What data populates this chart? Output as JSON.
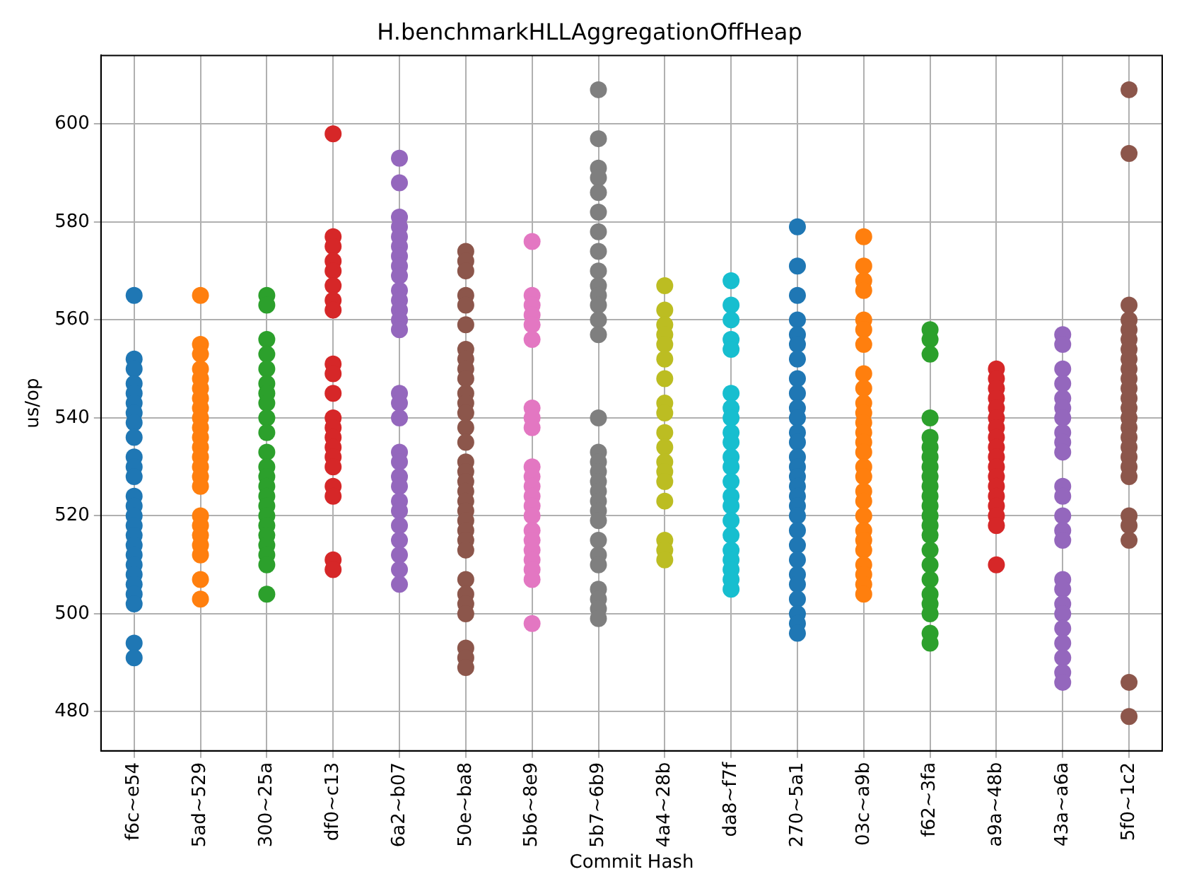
{
  "chart_data": {
    "type": "scatter",
    "title": "H.benchmarkHLLAggregationOffHeap",
    "xlabel": "Commit Hash",
    "ylabel": "us/op",
    "categories": [
      "f6c~e54",
      "5ad~529",
      "300~25a",
      "df0~c13",
      "6a2~b07",
      "50e~ba8",
      "5b6~8e9",
      "5b7~6b9",
      "4a4~28b",
      "da8~f7f",
      "270~5a1",
      "03c~a9b",
      "f62~3fa",
      "a9a~48b",
      "43a~a6a",
      "5f0~1c2"
    ],
    "ylim": [
      472,
      614
    ],
    "yticks": [
      480,
      500,
      520,
      540,
      560,
      580,
      600
    ],
    "grid": true,
    "legend": false,
    "marker": "circle",
    "series": [
      {
        "color": "#1f77b4",
        "x": [
          "f6c~e54",
          "f6c~e54",
          "f6c~e54",
          "f6c~e54",
          "f6c~e54",
          "f6c~e54",
          "f6c~e54",
          "f6c~e54",
          "f6c~e54",
          "f6c~e54",
          "f6c~e54",
          "f6c~e54",
          "f6c~e54",
          "f6c~e54",
          "f6c~e54",
          "f6c~e54",
          "f6c~e54",
          "f6c~e54",
          "f6c~e54",
          "f6c~e54",
          "f6c~e54",
          "f6c~e54",
          "f6c~e54",
          "f6c~e54",
          "f6c~e54",
          "f6c~e54"
        ],
        "values": [
          565,
          552,
          550,
          547,
          545,
          543,
          541,
          539,
          536,
          532,
          530,
          528,
          524,
          522,
          520,
          518,
          516,
          514,
          512,
          510,
          508,
          506,
          504,
          502,
          494,
          491
        ]
      },
      {
        "color": "#ff7f0e",
        "x": [
          "5ad~529",
          "5ad~529",
          "5ad~529",
          "5ad~529",
          "5ad~529",
          "5ad~529",
          "5ad~529",
          "5ad~529",
          "5ad~529",
          "5ad~529",
          "5ad~529",
          "5ad~529",
          "5ad~529",
          "5ad~529",
          "5ad~529",
          "5ad~529",
          "5ad~529",
          "5ad~529",
          "5ad~529",
          "5ad~529",
          "5ad~529",
          "5ad~529",
          "5ad~529"
        ],
        "values": [
          565,
          555,
          553,
          550,
          548,
          546,
          544,
          542,
          540,
          538,
          536,
          534,
          532,
          530,
          528,
          526,
          520,
          518,
          516,
          514,
          512,
          507,
          503
        ]
      },
      {
        "color": "#2ca02c",
        "x": [
          "300~25a",
          "300~25a",
          "300~25a",
          "300~25a",
          "300~25a",
          "300~25a",
          "300~25a",
          "300~25a",
          "300~25a",
          "300~25a",
          "300~25a",
          "300~25a",
          "300~25a",
          "300~25a",
          "300~25a",
          "300~25a",
          "300~25a",
          "300~25a",
          "300~25a",
          "300~25a",
          "300~25a",
          "300~25a",
          "300~25a"
        ],
        "values": [
          565,
          563,
          556,
          553,
          550,
          547,
          545,
          543,
          540,
          537,
          533,
          530,
          528,
          526,
          524,
          522,
          520,
          518,
          516,
          514,
          512,
          510,
          504
        ]
      },
      {
        "color": "#d62728",
        "x": [
          "df0~c13",
          "df0~c13",
          "df0~c13",
          "df0~c13",
          "df0~c13",
          "df0~c13",
          "df0~c13",
          "df0~c13",
          "df0~c13",
          "df0~c13",
          "df0~c13",
          "df0~c13",
          "df0~c13",
          "df0~c13",
          "df0~c13",
          "df0~c13",
          "df0~c13",
          "df0~c13",
          "df0~c13",
          "df0~c13",
          "df0~c13"
        ],
        "values": [
          598,
          577,
          575,
          572,
          570,
          567,
          564,
          562,
          551,
          549,
          545,
          540,
          538,
          536,
          534,
          532,
          530,
          526,
          524,
          511,
          509
        ]
      },
      {
        "color": "#9467bd",
        "x": [
          "6a2~b07",
          "6a2~b07",
          "6a2~b07",
          "6a2~b07",
          "6a2~b07",
          "6a2~b07",
          "6a2~b07",
          "6a2~b07",
          "6a2~b07",
          "6a2~b07",
          "6a2~b07",
          "6a2~b07",
          "6a2~b07",
          "6a2~b07",
          "6a2~b07",
          "6a2~b07",
          "6a2~b07",
          "6a2~b07",
          "6a2~b07",
          "6a2~b07",
          "6a2~b07",
          "6a2~b07",
          "6a2~b07",
          "6a2~b07",
          "6a2~b07",
          "6a2~b07",
          "6a2~b07",
          "6a2~b07"
        ],
        "values": [
          593,
          588,
          581,
          579,
          577,
          575,
          573,
          571,
          569,
          566,
          564,
          562,
          560,
          558,
          545,
          543,
          540,
          533,
          531,
          528,
          526,
          523,
          521,
          518,
          515,
          512,
          509,
          506
        ]
      },
      {
        "color": "#8c564b",
        "x": [
          "50e~ba8",
          "50e~ba8",
          "50e~ba8",
          "50e~ba8",
          "50e~ba8",
          "50e~ba8",
          "50e~ba8",
          "50e~ba8",
          "50e~ba8",
          "50e~ba8",
          "50e~ba8",
          "50e~ba8",
          "50e~ba8",
          "50e~ba8",
          "50e~ba8",
          "50e~ba8",
          "50e~ba8",
          "50e~ba8",
          "50e~ba8",
          "50e~ba8",
          "50e~ba8",
          "50e~ba8",
          "50e~ba8",
          "50e~ba8",
          "50e~ba8",
          "50e~ba8",
          "50e~ba8",
          "50e~ba8",
          "50e~ba8",
          "50e~ba8",
          "50e~ba8",
          "50e~ba8"
        ],
        "values": [
          574,
          572,
          570,
          565,
          563,
          559,
          554,
          552,
          550,
          548,
          545,
          543,
          541,
          538,
          535,
          531,
          529,
          527,
          525,
          523,
          521,
          519,
          517,
          515,
          513,
          507,
          504,
          502,
          500,
          493,
          491,
          489
        ]
      },
      {
        "color": "#e377c2",
        "x": [
          "5b6~8e9",
          "5b6~8e9",
          "5b6~8e9",
          "5b6~8e9",
          "5b6~8e9",
          "5b6~8e9",
          "5b6~8e9",
          "5b6~8e9",
          "5b6~8e9",
          "5b6~8e9",
          "5b6~8e9",
          "5b6~8e9",
          "5b6~8e9",
          "5b6~8e9",
          "5b6~8e9",
          "5b6~8e9",
          "5b6~8e9",
          "5b6~8e9",
          "5b6~8e9",
          "5b6~8e9",
          "5b6~8e9",
          "5b6~8e9"
        ],
        "values": [
          576,
          565,
          563,
          561,
          559,
          556,
          542,
          540,
          538,
          530,
          528,
          526,
          524,
          522,
          520,
          517,
          515,
          513,
          511,
          509,
          507,
          498
        ]
      },
      {
        "color": "#7f7f7f",
        "x": [
          "5b7~6b9",
          "5b7~6b9",
          "5b7~6b9",
          "5b7~6b9",
          "5b7~6b9",
          "5b7~6b9",
          "5b7~6b9",
          "5b7~6b9",
          "5b7~6b9",
          "5b7~6b9",
          "5b7~6b9",
          "5b7~6b9",
          "5b7~6b9",
          "5b7~6b9",
          "5b7~6b9",
          "5b7~6b9",
          "5b7~6b9",
          "5b7~6b9",
          "5b7~6b9",
          "5b7~6b9",
          "5b7~6b9",
          "5b7~6b9",
          "5b7~6b9",
          "5b7~6b9",
          "5b7~6b9",
          "5b7~6b9",
          "5b7~6b9",
          "5b7~6b9",
          "5b7~6b9",
          "5b7~6b9"
        ],
        "values": [
          607,
          597,
          591,
          589,
          586,
          582,
          578,
          574,
          570,
          567,
          565,
          563,
          560,
          557,
          540,
          533,
          531,
          529,
          527,
          525,
          523,
          521,
          519,
          515,
          512,
          510,
          505,
          503,
          501,
          499
        ]
      },
      {
        "color": "#bcbd22",
        "x": [
          "4a4~28b",
          "4a4~28b",
          "4a4~28b",
          "4a4~28b",
          "4a4~28b",
          "4a4~28b",
          "4a4~28b",
          "4a4~28b",
          "4a4~28b",
          "4a4~28b",
          "4a4~28b",
          "4a4~28b",
          "4a4~28b",
          "4a4~28b",
          "4a4~28b",
          "4a4~28b",
          "4a4~28b",
          "4a4~28b"
        ],
        "values": [
          567,
          562,
          559,
          557,
          555,
          552,
          548,
          543,
          541,
          537,
          534,
          531,
          529,
          527,
          523,
          515,
          513,
          511
        ]
      },
      {
        "color": "#17becf",
        "x": [
          "da8~f7f",
          "da8~f7f",
          "da8~f7f",
          "da8~f7f",
          "da8~f7f",
          "da8~f7f",
          "da8~f7f",
          "da8~f7f",
          "da8~f7f",
          "da8~f7f",
          "da8~f7f",
          "da8~f7f",
          "da8~f7f",
          "da8~f7f",
          "da8~f7f",
          "da8~f7f",
          "da8~f7f",
          "da8~f7f",
          "da8~f7f",
          "da8~f7f",
          "da8~f7f",
          "da8~f7f"
        ],
        "values": [
          568,
          563,
          560,
          556,
          554,
          545,
          542,
          540,
          537,
          535,
          532,
          530,
          527,
          524,
          522,
          519,
          516,
          513,
          511,
          509,
          507,
          505
        ]
      },
      {
        "color": "#1f77b4",
        "x": [
          "270~5a1",
          "270~5a1",
          "270~5a1",
          "270~5a1",
          "270~5a1",
          "270~5a1",
          "270~5a1",
          "270~5a1",
          "270~5a1",
          "270~5a1",
          "270~5a1",
          "270~5a1",
          "270~5a1",
          "270~5a1",
          "270~5a1",
          "270~5a1",
          "270~5a1",
          "270~5a1",
          "270~5a1",
          "270~5a1",
          "270~5a1",
          "270~5a1",
          "270~5a1",
          "270~5a1",
          "270~5a1",
          "270~5a1",
          "270~5a1",
          "270~5a1",
          "270~5a1"
        ],
        "values": [
          579,
          571,
          565,
          560,
          557,
          555,
          552,
          548,
          545,
          542,
          540,
          537,
          535,
          532,
          530,
          528,
          526,
          524,
          522,
          520,
          517,
          514,
          511,
          508,
          506,
          503,
          500,
          498,
          496
        ]
      },
      {
        "color": "#ff7f0e",
        "x": [
          "03c~a9b",
          "03c~a9b",
          "03c~a9b",
          "03c~a9b",
          "03c~a9b",
          "03c~a9b",
          "03c~a9b",
          "03c~a9b",
          "03c~a9b",
          "03c~a9b",
          "03c~a9b",
          "03c~a9b",
          "03c~a9b",
          "03c~a9b",
          "03c~a9b",
          "03c~a9b",
          "03c~a9b",
          "03c~a9b",
          "03c~a9b",
          "03c~a9b",
          "03c~a9b",
          "03c~a9b",
          "03c~a9b",
          "03c~a9b",
          "03c~a9b",
          "03c~a9b",
          "03c~a9b"
        ],
        "values": [
          577,
          571,
          568,
          566,
          560,
          558,
          555,
          549,
          546,
          543,
          541,
          539,
          537,
          535,
          533,
          530,
          528,
          525,
          523,
          520,
          517,
          515,
          513,
          510,
          508,
          506,
          504
        ]
      },
      {
        "color": "#2ca02c",
        "x": [
          "f62~3fa",
          "f62~3fa",
          "f62~3fa",
          "f62~3fa",
          "f62~3fa",
          "f62~3fa",
          "f62~3fa",
          "f62~3fa",
          "f62~3fa",
          "f62~3fa",
          "f62~3fa",
          "f62~3fa",
          "f62~3fa",
          "f62~3fa",
          "f62~3fa",
          "f62~3fa",
          "f62~3fa",
          "f62~3fa",
          "f62~3fa",
          "f62~3fa",
          "f62~3fa",
          "f62~3fa",
          "f62~3fa"
        ],
        "values": [
          558,
          556,
          553,
          540,
          536,
          534,
          532,
          530,
          528,
          526,
          524,
          522,
          520,
          518,
          516,
          513,
          510,
          507,
          504,
          502,
          500,
          496,
          494
        ]
      },
      {
        "color": "#d62728",
        "x": [
          "a9a~48b",
          "a9a~48b",
          "a9a~48b",
          "a9a~48b",
          "a9a~48b",
          "a9a~48b",
          "a9a~48b",
          "a9a~48b",
          "a9a~48b",
          "a9a~48b",
          "a9a~48b",
          "a9a~48b",
          "a9a~48b",
          "a9a~48b",
          "a9a~48b",
          "a9a~48b",
          "a9a~48b",
          "a9a~48b"
        ],
        "values": [
          550,
          548,
          546,
          544,
          542,
          540,
          538,
          536,
          534,
          532,
          530,
          528,
          526,
          524,
          522,
          520,
          518,
          510
        ]
      },
      {
        "color": "#9467bd",
        "x": [
          "43a~a6a",
          "43a~a6a",
          "43a~a6a",
          "43a~a6a",
          "43a~a6a",
          "43a~a6a",
          "43a~a6a",
          "43a~a6a",
          "43a~a6a",
          "43a~a6a",
          "43a~a6a",
          "43a~a6a",
          "43a~a6a",
          "43a~a6a",
          "43a~a6a",
          "43a~a6a",
          "43a~a6a",
          "43a~a6a",
          "43a~a6a",
          "43a~a6a",
          "43a~a6a",
          "43a~a6a",
          "43a~a6a",
          "43a~a6a"
        ],
        "values": [
          557,
          555,
          550,
          547,
          544,
          542,
          540,
          537,
          535,
          533,
          526,
          524,
          520,
          517,
          515,
          507,
          505,
          502,
          500,
          497,
          494,
          491,
          488,
          486
        ]
      },
      {
        "color": "#8c564b",
        "x": [
          "5f0~1c2",
          "5f0~1c2",
          "5f0~1c2",
          "5f0~1c2",
          "5f0~1c2",
          "5f0~1c2",
          "5f0~1c2",
          "5f0~1c2",
          "5f0~1c2",
          "5f0~1c2",
          "5f0~1c2",
          "5f0~1c2",
          "5f0~1c2",
          "5f0~1c2",
          "5f0~1c2",
          "5f0~1c2",
          "5f0~1c2",
          "5f0~1c2",
          "5f0~1c2",
          "5f0~1c2",
          "5f0~1c2",
          "5f0~1c2",
          "5f0~1c2",
          "5f0~1c2",
          "5f0~1c2"
        ],
        "values": [
          607,
          594,
          563,
          560,
          558,
          556,
          554,
          552,
          550,
          548,
          546,
          544,
          542,
          540,
          538,
          536,
          534,
          532,
          530,
          528,
          520,
          518,
          515,
          486,
          479
        ]
      }
    ]
  }
}
